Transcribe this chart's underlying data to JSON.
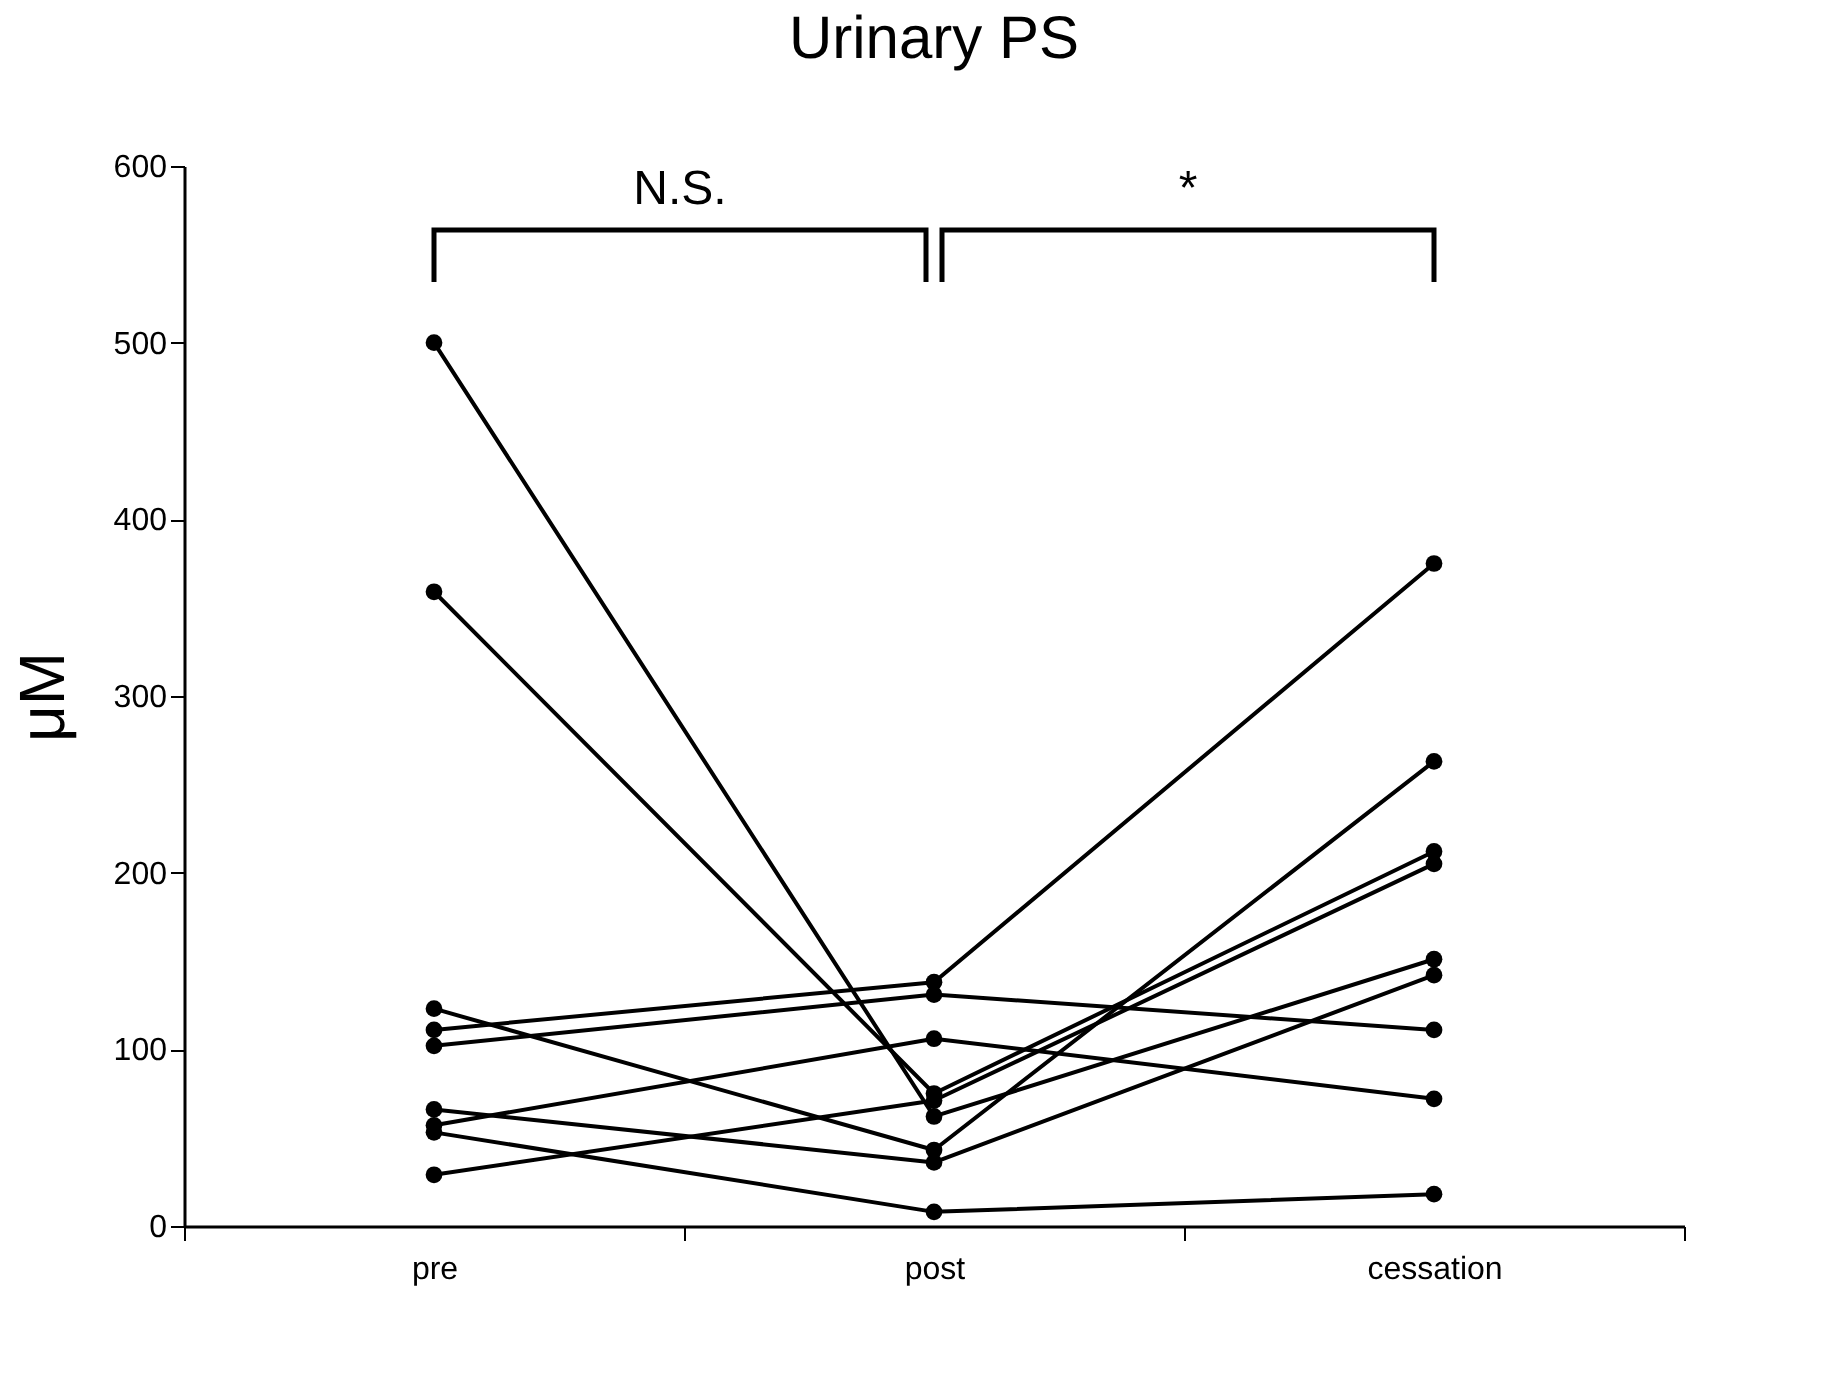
{
  "chart_data": {
    "type": "line",
    "title": "Urinary PS",
    "ylabel": "μM",
    "categories": [
      "pre",
      "post",
      "cessation"
    ],
    "series": [
      {
        "color": "#000000",
        "values": [
          500,
          62,
          151
        ]
      },
      {
        "color": "#000000",
        "values": [
          359,
          75,
          212
        ]
      },
      {
        "color": "#000000",
        "values": [
          123,
          43,
          263
        ]
      },
      {
        "color": "#000000",
        "values": [
          111,
          138,
          375
        ]
      },
      {
        "color": "#000000",
        "values": [
          102,
          131,
          111
        ]
      },
      {
        "color": "#000000",
        "values": [
          66,
          36,
          142
        ]
      },
      {
        "color": "#000000",
        "values": [
          57,
          106,
          72
        ]
      },
      {
        "color": "#000000",
        "values": [
          53,
          8,
          18
        ]
      },
      {
        "color": "#000000",
        "values": [
          29,
          71,
          205
        ]
      }
    ],
    "ylim": [
      0,
      600
    ],
    "yticks": [
      0,
      100,
      200,
      300,
      400,
      500,
      600
    ],
    "annotations": [
      "N.S.",
      "*"
    ],
    "marker": "circle",
    "line_style": "solid",
    "grid": false,
    "legend": false
  }
}
